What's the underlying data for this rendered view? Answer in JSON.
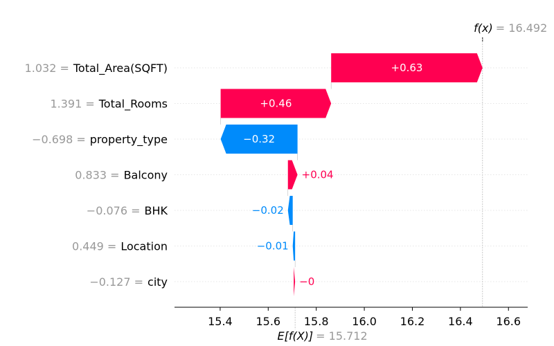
{
  "chart_data": {
    "type": "waterfall",
    "base_value": 15.712,
    "base_label": "E[f(X)]",
    "base_value_label": "= 15.712",
    "final_value": 16.492,
    "final_label": "f(x)",
    "final_value_label": "= 16.492",
    "xlim": [
      15.21,
      16.68
    ],
    "xticks": [
      15.4,
      15.6,
      15.8,
      16.0,
      16.2,
      16.4,
      16.6
    ],
    "xtick_labels": [
      "15.4",
      "15.6",
      "15.8",
      "16.0",
      "16.2",
      "16.4",
      "16.6"
    ],
    "features": [
      {
        "value_text": "1.032 =",
        "name": "Total_Area(SQFT)",
        "contribution": 0.63,
        "label": "+0.63"
      },
      {
        "value_text": "1.391 =",
        "name": "Total_Rooms",
        "contribution": 0.46,
        "label": "+0.46"
      },
      {
        "value_text": "−0.698 =",
        "name": "property_type",
        "contribution": -0.32,
        "label": "−0.32"
      },
      {
        "value_text": "0.833 =",
        "name": "Balcony",
        "contribution": 0.04,
        "label": "+0.04"
      },
      {
        "value_text": "−0.076 =",
        "name": "BHK",
        "contribution": -0.02,
        "label": "−0.02"
      },
      {
        "value_text": "0.449 =",
        "name": "Location",
        "contribution": -0.01,
        "label": "−0.01"
      },
      {
        "value_text": "−0.127 =",
        "name": "city",
        "contribution": -0.0,
        "label": "−0"
      }
    ],
    "colors": {
      "positive": "#ff0051",
      "negative": "#008bfb",
      "muted": "#999999"
    }
  }
}
